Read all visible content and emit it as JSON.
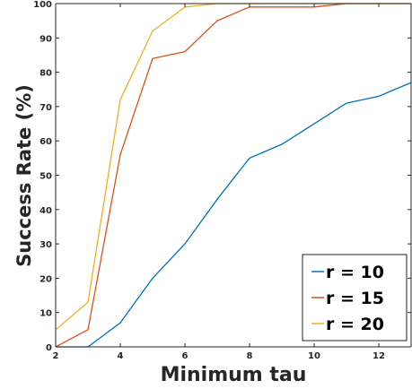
{
  "chart_data": {
    "type": "line",
    "xlabel": "Minimum tau",
    "ylabel": "Success Rate (%)",
    "xlim": [
      2,
      13
    ],
    "ylim": [
      0,
      100
    ],
    "x_ticks": [
      2,
      4,
      6,
      8,
      10,
      12
    ],
    "y_ticks": [
      0,
      10,
      20,
      30,
      40,
      50,
      60,
      70,
      80,
      90,
      100
    ],
    "grid": false,
    "legend_position": "bottom-right",
    "x": [
      2,
      3,
      4,
      5,
      6,
      7,
      8,
      9,
      10,
      11,
      12,
      13
    ],
    "series": [
      {
        "name": "r = 10",
        "color": "#0072BD",
        "values": [
          0,
          0,
          7,
          20,
          30,
          43,
          55,
          59,
          65,
          71,
          73,
          77
        ]
      },
      {
        "name": "r = 15",
        "color": "#D95319",
        "values": [
          0,
          5,
          56,
          84,
          86,
          95,
          99,
          99,
          99,
          100,
          100,
          100
        ]
      },
      {
        "name": "r = 20",
        "color": "#EDB120",
        "values": [
          5,
          13,
          72,
          92,
          99,
          100,
          100,
          100,
          100,
          100,
          100,
          100
        ]
      }
    ]
  }
}
